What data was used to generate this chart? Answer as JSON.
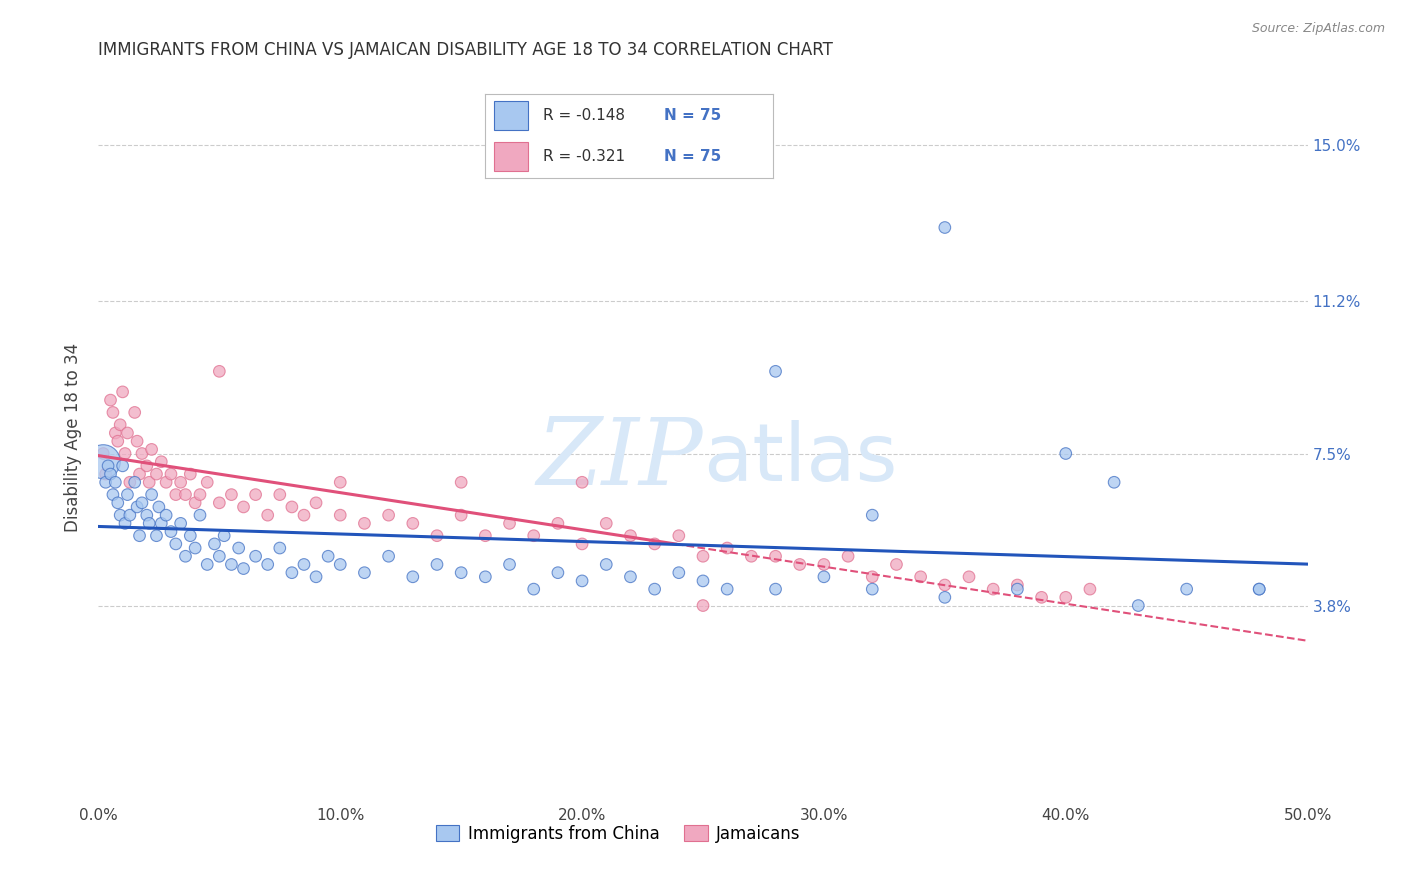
{
  "title": "IMMIGRANTS FROM CHINA VS JAMAICAN DISABILITY AGE 18 TO 34 CORRELATION CHART",
  "source": "Source: ZipAtlas.com",
  "ylabel": "Disability Age 18 to 34",
  "xlim": [
    0.0,
    0.5
  ],
  "ylim": [
    -0.01,
    0.168
  ],
  "xtick_labels": [
    "0.0%",
    "10.0%",
    "20.0%",
    "30.0%",
    "40.0%",
    "50.0%"
  ],
  "xtick_vals": [
    0.0,
    0.1,
    0.2,
    0.3,
    0.4,
    0.5
  ],
  "ytick_labels": [
    "3.8%",
    "7.5%",
    "11.2%",
    "15.0%"
  ],
  "ytick_vals": [
    0.038,
    0.075,
    0.112,
    0.15
  ],
  "color_blue": "#A8C8F0",
  "color_pink": "#F0A8C0",
  "color_blue_edge": "#4472C4",
  "color_pink_edge": "#E07090",
  "color_line_blue": "#2255BB",
  "color_line_pink": "#E0507A",
  "watermark_color": "#D8E8F8",
  "china_x": [
    0.002,
    0.003,
    0.004,
    0.005,
    0.006,
    0.007,
    0.008,
    0.009,
    0.01,
    0.011,
    0.012,
    0.013,
    0.015,
    0.016,
    0.017,
    0.018,
    0.02,
    0.021,
    0.022,
    0.024,
    0.025,
    0.026,
    0.028,
    0.03,
    0.032,
    0.034,
    0.036,
    0.038,
    0.04,
    0.042,
    0.045,
    0.048,
    0.05,
    0.052,
    0.055,
    0.058,
    0.06,
    0.065,
    0.07,
    0.075,
    0.08,
    0.085,
    0.09,
    0.095,
    0.1,
    0.11,
    0.12,
    0.13,
    0.14,
    0.15,
    0.16,
    0.17,
    0.18,
    0.19,
    0.2,
    0.21,
    0.22,
    0.23,
    0.24,
    0.25,
    0.26,
    0.28,
    0.3,
    0.32,
    0.35,
    0.38,
    0.4,
    0.42,
    0.45,
    0.48,
    0.35,
    0.28,
    0.32,
    0.48,
    0.43
  ],
  "china_y": [
    0.073,
    0.068,
    0.072,
    0.07,
    0.065,
    0.068,
    0.063,
    0.06,
    0.072,
    0.058,
    0.065,
    0.06,
    0.068,
    0.062,
    0.055,
    0.063,
    0.06,
    0.058,
    0.065,
    0.055,
    0.062,
    0.058,
    0.06,
    0.056,
    0.053,
    0.058,
    0.05,
    0.055,
    0.052,
    0.06,
    0.048,
    0.053,
    0.05,
    0.055,
    0.048,
    0.052,
    0.047,
    0.05,
    0.048,
    0.052,
    0.046,
    0.048,
    0.045,
    0.05,
    0.048,
    0.046,
    0.05,
    0.045,
    0.048,
    0.046,
    0.045,
    0.048,
    0.042,
    0.046,
    0.044,
    0.048,
    0.045,
    0.042,
    0.046,
    0.044,
    0.042,
    0.042,
    0.045,
    0.042,
    0.04,
    0.042,
    0.075,
    0.068,
    0.042,
    0.042,
    0.13,
    0.095,
    0.06,
    0.042,
    0.038
  ],
  "china_sizes": [
    70,
    70,
    70,
    70,
    70,
    70,
    70,
    70,
    70,
    70,
    70,
    70,
    70,
    70,
    70,
    70,
    70,
    70,
    70,
    70,
    70,
    70,
    70,
    70,
    70,
    70,
    70,
    70,
    70,
    70,
    70,
    70,
    70,
    70,
    70,
    70,
    70,
    70,
    70,
    70,
    70,
    70,
    70,
    70,
    70,
    70,
    70,
    70,
    70,
    70,
    70,
    70,
    70,
    70,
    70,
    70,
    70,
    70,
    70,
    70,
    70,
    70,
    70,
    70,
    70,
    70,
    70,
    70,
    70,
    70,
    70,
    70,
    70,
    70,
    70
  ],
  "china_sizes_special": {
    "0": 600
  },
  "jamaica_x": [
    0.002,
    0.003,
    0.005,
    0.006,
    0.007,
    0.008,
    0.009,
    0.01,
    0.011,
    0.012,
    0.013,
    0.015,
    0.016,
    0.017,
    0.018,
    0.02,
    0.021,
    0.022,
    0.024,
    0.026,
    0.028,
    0.03,
    0.032,
    0.034,
    0.036,
    0.038,
    0.04,
    0.042,
    0.045,
    0.05,
    0.055,
    0.06,
    0.065,
    0.07,
    0.075,
    0.08,
    0.085,
    0.09,
    0.1,
    0.11,
    0.12,
    0.13,
    0.14,
    0.15,
    0.16,
    0.17,
    0.18,
    0.19,
    0.2,
    0.21,
    0.22,
    0.23,
    0.24,
    0.25,
    0.26,
    0.27,
    0.28,
    0.29,
    0.3,
    0.31,
    0.32,
    0.33,
    0.34,
    0.35,
    0.36,
    0.37,
    0.38,
    0.39,
    0.4,
    0.41,
    0.05,
    0.1,
    0.15,
    0.2,
    0.25
  ],
  "jamaica_y": [
    0.075,
    0.07,
    0.088,
    0.085,
    0.08,
    0.078,
    0.082,
    0.09,
    0.075,
    0.08,
    0.068,
    0.085,
    0.078,
    0.07,
    0.075,
    0.072,
    0.068,
    0.076,
    0.07,
    0.073,
    0.068,
    0.07,
    0.065,
    0.068,
    0.065,
    0.07,
    0.063,
    0.065,
    0.068,
    0.063,
    0.065,
    0.062,
    0.065,
    0.06,
    0.065,
    0.062,
    0.06,
    0.063,
    0.06,
    0.058,
    0.06,
    0.058,
    0.055,
    0.06,
    0.055,
    0.058,
    0.055,
    0.058,
    0.053,
    0.058,
    0.055,
    0.053,
    0.055,
    0.05,
    0.052,
    0.05,
    0.05,
    0.048,
    0.048,
    0.05,
    0.045,
    0.048,
    0.045,
    0.043,
    0.045,
    0.042,
    0.043,
    0.04,
    0.04,
    0.042,
    0.095,
    0.068,
    0.068,
    0.068,
    0.038
  ],
  "jamaica_sizes": [
    70,
    70,
    70,
    70,
    70,
    70,
    70,
    70,
    70,
    70,
    70,
    70,
    70,
    70,
    70,
    70,
    70,
    70,
    70,
    70,
    70,
    70,
    70,
    70,
    70,
    70,
    70,
    70,
    70,
    70,
    70,
    70,
    70,
    70,
    70,
    70,
    70,
    70,
    70,
    70,
    70,
    70,
    70,
    70,
    70,
    70,
    70,
    70,
    70,
    70,
    70,
    70,
    70,
    70,
    70,
    70,
    70,
    70,
    70,
    70,
    70,
    70,
    70,
    70,
    70,
    70,
    70,
    70,
    70,
    70,
    70,
    70,
    70,
    70,
    70
  ]
}
